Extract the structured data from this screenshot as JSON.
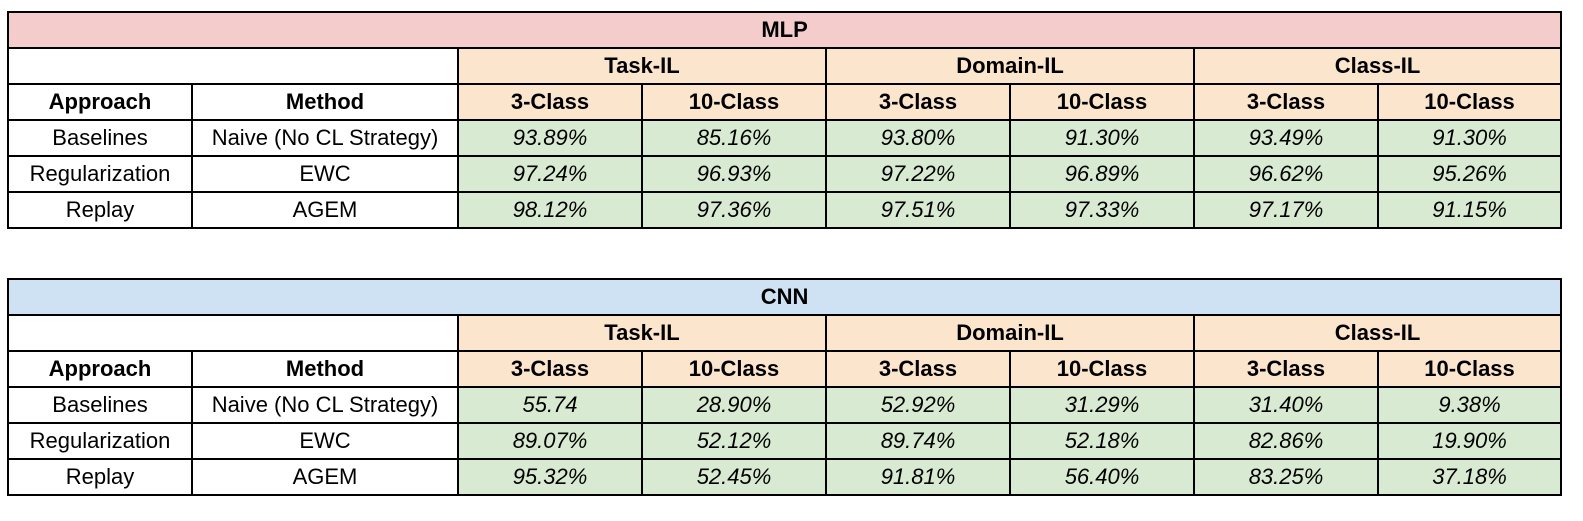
{
  "colors": {
    "mlp_title_bg": "#f4cccc",
    "cnn_title_bg": "#cfe2f3",
    "header_bg": "#fce5cd",
    "value_bg": "#d9ead3",
    "border": "#000000"
  },
  "tables": [
    {
      "title": "MLP",
      "groups": [
        "Task-IL",
        "Domain-IL",
        "Class-IL"
      ],
      "col_headers": [
        "Approach",
        "Method",
        "3-Class",
        "10-Class",
        "3-Class",
        "10-Class",
        "3-Class",
        "10-Class"
      ],
      "rows": [
        {
          "approach": "Baselines",
          "method": "Naive (No CL Strategy)",
          "values": [
            "93.89%",
            "85.16%",
            "93.80%",
            "91.30%",
            "93.49%",
            "91.30%"
          ]
        },
        {
          "approach": "Regularization",
          "method": "EWC",
          "values": [
            "97.24%",
            "96.93%",
            "97.22%",
            "96.89%",
            "96.62%",
            "95.26%"
          ]
        },
        {
          "approach": "Replay",
          "method": "AGEM",
          "values": [
            "98.12%",
            "97.36%",
            "97.51%",
            "97.33%",
            "97.17%",
            "91.15%"
          ]
        }
      ]
    },
    {
      "title": "CNN",
      "groups": [
        "Task-IL",
        "Domain-IL",
        "Class-IL"
      ],
      "col_headers": [
        "Approach",
        "Method",
        "3-Class",
        "10-Class",
        "3-Class",
        "10-Class",
        "3-Class",
        "10-Class"
      ],
      "rows": [
        {
          "approach": "Baselines",
          "method": "Naive (No CL Strategy)",
          "values": [
            "55.74",
            "28.90%",
            "52.92%",
            "31.29%",
            "31.40%",
            "9.38%"
          ]
        },
        {
          "approach": "Regularization",
          "method": "EWC",
          "values": [
            "89.07%",
            "52.12%",
            "89.74%",
            "52.18%",
            "82.86%",
            "19.90%"
          ]
        },
        {
          "approach": "Replay",
          "method": "AGEM",
          "values": [
            "95.32%",
            "52.45%",
            "91.81%",
            "56.40%",
            "83.25%",
            "37.18%"
          ]
        }
      ]
    }
  ]
}
